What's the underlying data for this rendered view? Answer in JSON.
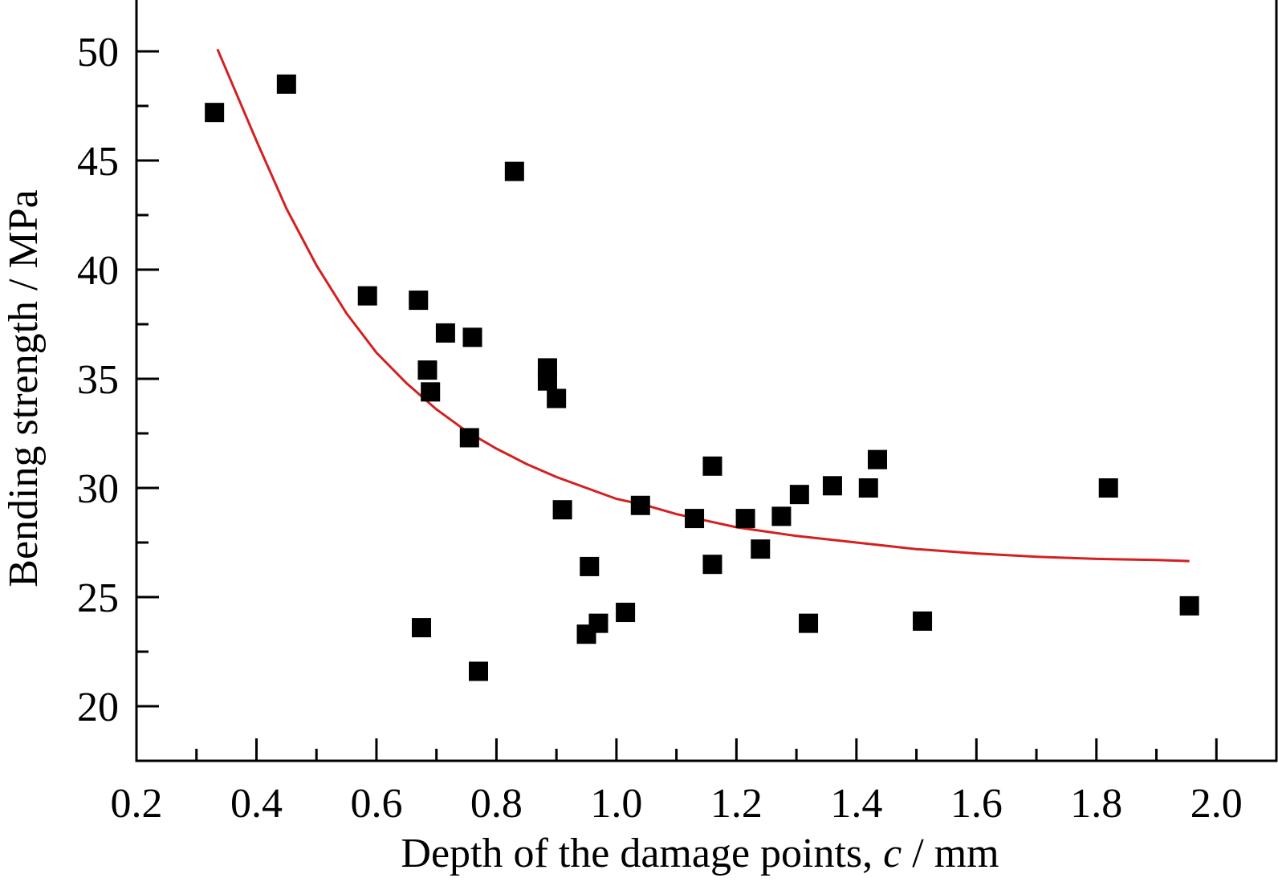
{
  "chart_data": {
    "type": "scatter",
    "title": "",
    "xlabel_main": "Depth of the damage points, ",
    "xlabel_var": "c",
    "xlabel_unit": " / mm",
    "ylabel": "Bending strength / MPa",
    "xlim": [
      0.2,
      2.1
    ],
    "ylim": [
      17.5,
      52.5
    ],
    "x_ticks": [
      0.2,
      0.4,
      0.6,
      0.8,
      1.0,
      1.2,
      1.4,
      1.6,
      1.8,
      2.0
    ],
    "x_tick_labels": [
      "0.2",
      "0.4",
      "0.6",
      "0.8",
      "1.0",
      "1.2",
      "1.4",
      "1.6",
      "1.8",
      "2.0"
    ],
    "y_ticks": [
      20,
      25,
      30,
      35,
      40,
      45,
      50
    ],
    "y_tick_labels": [
      "20",
      "25",
      "30",
      "35",
      "40",
      "45",
      "50"
    ],
    "grid": false,
    "series": [
      {
        "type": "scatter",
        "marker": "square",
        "color": "#000000",
        "points": [
          [
            0.33,
            47.2
          ],
          [
            0.45,
            48.5
          ],
          [
            0.585,
            38.8
          ],
          [
            0.67,
            38.6
          ],
          [
            0.675,
            23.6
          ],
          [
            0.685,
            35.4
          ],
          [
            0.69,
            34.4
          ],
          [
            0.715,
            37.1
          ],
          [
            0.755,
            32.3
          ],
          [
            0.76,
            36.9
          ],
          [
            0.77,
            21.6
          ],
          [
            0.83,
            44.5
          ],
          [
            0.885,
            35.5
          ],
          [
            0.885,
            34.9
          ],
          [
            0.9,
            34.1
          ],
          [
            0.91,
            29.0
          ],
          [
            0.95,
            23.3
          ],
          [
            0.955,
            26.4
          ],
          [
            0.97,
            23.8
          ],
          [
            1.015,
            24.3
          ],
          [
            1.04,
            29.2
          ],
          [
            1.13,
            28.6
          ],
          [
            1.16,
            31.0
          ],
          [
            1.16,
            26.5
          ],
          [
            1.215,
            28.6
          ],
          [
            1.24,
            27.2
          ],
          [
            1.275,
            28.7
          ],
          [
            1.305,
            29.7
          ],
          [
            1.32,
            23.8
          ],
          [
            1.36,
            30.1
          ],
          [
            1.42,
            30.0
          ],
          [
            1.435,
            31.3
          ],
          [
            1.51,
            23.9
          ],
          [
            1.82,
            30.0
          ],
          [
            1.955,
            24.6
          ]
        ]
      },
      {
        "type": "line",
        "color": "#d42020",
        "points": [
          [
            0.335,
            50.1
          ],
          [
            0.4,
            45.9
          ],
          [
            0.45,
            42.8
          ],
          [
            0.5,
            40.2
          ],
          [
            0.55,
            38.0
          ],
          [
            0.6,
            36.2
          ],
          [
            0.65,
            34.8
          ],
          [
            0.7,
            33.6
          ],
          [
            0.75,
            32.6
          ],
          [
            0.8,
            31.8
          ],
          [
            0.85,
            31.1
          ],
          [
            0.9,
            30.5
          ],
          [
            0.95,
            30.0
          ],
          [
            1.0,
            29.5
          ],
          [
            1.05,
            29.2
          ],
          [
            1.1,
            28.8
          ],
          [
            1.15,
            28.5
          ],
          [
            1.2,
            28.2
          ],
          [
            1.3,
            27.8
          ],
          [
            1.4,
            27.5
          ],
          [
            1.5,
            27.2
          ],
          [
            1.6,
            27.0
          ],
          [
            1.7,
            26.85
          ],
          [
            1.8,
            26.75
          ],
          [
            1.9,
            26.7
          ],
          [
            1.955,
            26.65
          ]
        ]
      }
    ]
  }
}
